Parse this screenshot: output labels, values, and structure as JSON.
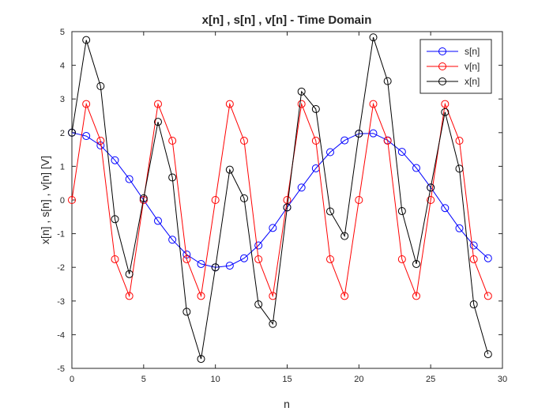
{
  "chart_data": {
    "type": "line",
    "title": "x[n] , s[n] , v[n] - Time Domain",
    "xlabel": "n",
    "ylabel": "x[n] , s[n] , v[n] [V]",
    "xlim": [
      0,
      30
    ],
    "ylim": [
      -5,
      5
    ],
    "xticks": [
      0,
      5,
      10,
      15,
      20,
      25,
      30
    ],
    "yticks": [
      -5,
      -4,
      -3,
      -2,
      -1,
      0,
      1,
      2,
      3,
      4,
      5
    ],
    "grid": false,
    "legend": "top-right",
    "x": [
      0,
      1,
      2,
      3,
      4,
      5,
      6,
      7,
      8,
      9,
      10,
      11,
      12,
      13,
      14,
      15,
      16,
      17,
      18,
      19,
      20,
      21,
      22,
      23,
      24,
      25,
      26,
      27,
      28,
      29
    ],
    "series": [
      {
        "name": "s[n]",
        "color": "#0000ff",
        "marker": "circle",
        "values": [
          2.0,
          1.9,
          1.62,
          1.18,
          0.62,
          0.0,
          -0.62,
          -1.18,
          -1.62,
          -1.9,
          -2.0,
          -1.95,
          -1.73,
          -1.35,
          -0.83,
          -0.22,
          0.37,
          0.94,
          1.42,
          1.77,
          1.97,
          1.98,
          1.77,
          1.43,
          0.95,
          0.37,
          -0.24,
          -0.84,
          -1.35,
          -1.73
        ]
      },
      {
        "name": "v[n]",
        "color": "#ff0000",
        "marker": "circle",
        "values": [
          0.0,
          2.85,
          1.76,
          -1.76,
          -2.85,
          0.0,
          2.85,
          1.76,
          -1.76,
          -2.85,
          0.0,
          2.85,
          1.76,
          -1.76,
          -2.85,
          0.0,
          2.85,
          1.76,
          -1.76,
          -2.85,
          0.0,
          2.85,
          1.76,
          -1.76,
          -2.85,
          0.0,
          2.85,
          1.76,
          -1.76,
          -2.85
        ]
      },
      {
        "name": "x[n]",
        "color": "#000000",
        "marker": "circle",
        "values": [
          2.0,
          4.75,
          3.38,
          -0.57,
          -2.2,
          0.05,
          2.32,
          0.67,
          -3.32,
          -4.72,
          -2.0,
          0.9,
          0.05,
          -3.1,
          -3.68,
          -0.22,
          3.22,
          2.7,
          -0.34,
          -1.07,
          1.97,
          4.83,
          3.53,
          -0.33,
          -1.9,
          0.37,
          2.61,
          0.93,
          -3.1,
          -4.58
        ]
      }
    ]
  }
}
